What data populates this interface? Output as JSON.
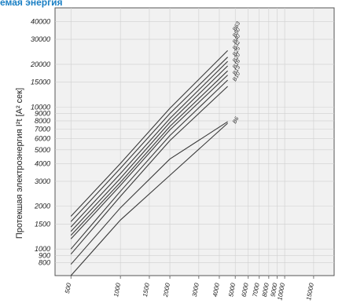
{
  "title": "емая энергия",
  "chart_data": {
    "type": "line",
    "title": "емая энергия",
    "xlabel": "",
    "ylabel": "Протекшая электроэнергия I²t [A² сек]",
    "x_scale": "log",
    "y_scale": "log",
    "xlim": [
      400,
      20000
    ],
    "ylim": [
      650,
      50000
    ],
    "grid": true,
    "x_ticks": [
      500,
      1000,
      1500,
      2000,
      3000,
      4000,
      5000,
      6000,
      7000,
      8000,
      9000,
      10000,
      15000
    ],
    "x_tick_labels": [
      "500",
      "1000",
      "1500",
      "2000",
      "3000",
      "4000",
      "5000",
      "6000",
      "7000",
      "8000",
      "9000",
      "10000",
      "15000"
    ],
    "y_ticks": [
      800,
      900,
      1000,
      1500,
      2000,
      3000,
      4000,
      5000,
      6000,
      7000,
      8000,
      9000,
      10000,
      15000,
      20000,
      30000,
      40000
    ],
    "y_tick_labels": [
      "800",
      "900",
      "1000",
      "1500",
      "2000",
      "3000",
      "4000",
      "5000",
      "6000",
      "7000",
      "8000",
      "9000",
      "10000",
      "15000",
      "20000",
      "30000",
      "40000"
    ],
    "series": [
      {
        "name": "B63",
        "x": [
          500,
          1000,
          2000,
          4500
        ],
        "y": [
          1700,
          4000,
          9800,
          25000
        ]
      },
      {
        "name": "B50",
        "x": [
          500,
          1000,
          2000,
          4500
        ],
        "y": [
          1560,
          3700,
          9000,
          22500
        ]
      },
      {
        "name": "B40",
        "x": [
          500,
          1000,
          2000,
          4500
        ],
        "y": [
          1430,
          3400,
          8300,
          21000
        ]
      },
      {
        "name": "B32",
        "x": [
          500,
          1000,
          2000,
          4500
        ],
        "y": [
          1330,
          3150,
          7800,
          19500
        ]
      },
      {
        "name": "B25",
        "x": [
          500,
          1000,
          2000,
          4500
        ],
        "y": [
          1250,
          2950,
          7300,
          18000
        ]
      },
      {
        "name": "B20",
        "x": [
          500,
          1000,
          2000,
          4500
        ],
        "y": [
          1180,
          2800,
          6900,
          16800
        ]
      },
      {
        "name": "B16",
        "x": [
          500,
          1000,
          2000,
          4500
        ],
        "y": [
          1000,
          2550,
          6300,
          15500
        ]
      },
      {
        "name": "B13",
        "x": [
          500,
          1000,
          2000,
          4500
        ],
        "y": [
          920,
          2350,
          5800,
          14000
        ]
      },
      {
        "name": "B10",
        "x": [
          500,
          1000,
          2000,
          4500
        ],
        "y": [
          780,
          1950,
          4300,
          7900
        ]
      },
      {
        "name": "B6",
        "x": [
          500,
          1000,
          2000,
          4500
        ],
        "y": [
          650,
          1600,
          3300,
          7700
        ]
      }
    ]
  }
}
